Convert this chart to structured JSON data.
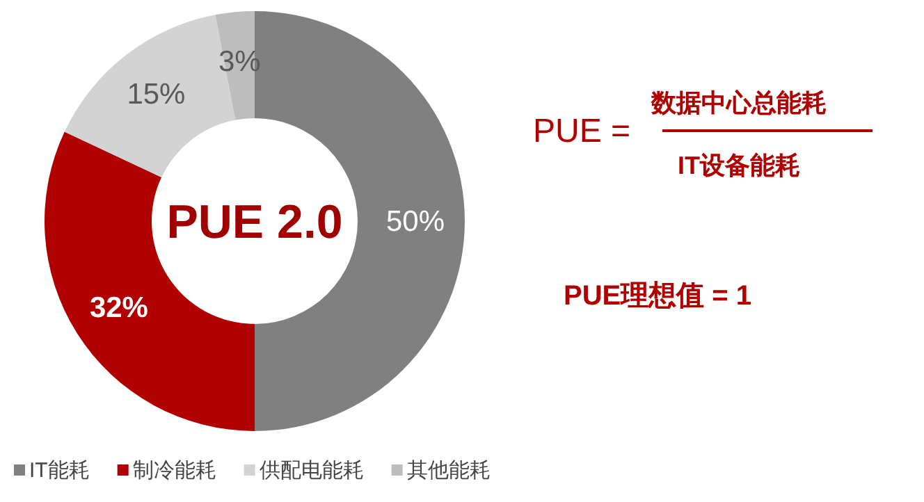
{
  "chart_data": {
    "type": "donut",
    "categories": [
      "IT能耗",
      "制冷能耗",
      "供配电能耗",
      "其他能耗"
    ],
    "values": [
      50,
      32,
      15,
      3
    ],
    "colors": [
      "#808080",
      "#b00000",
      "#d3d3d3",
      "#bdbdbd"
    ],
    "value_labels": [
      "50%",
      "32%",
      "15%",
      "3%"
    ],
    "legend": "bottom",
    "annotations": [
      "PUE 2.0",
      "PUE =",
      "数据中心总能耗",
      "IT设备能耗",
      "PUE理想值 = 1"
    ]
  }
}
